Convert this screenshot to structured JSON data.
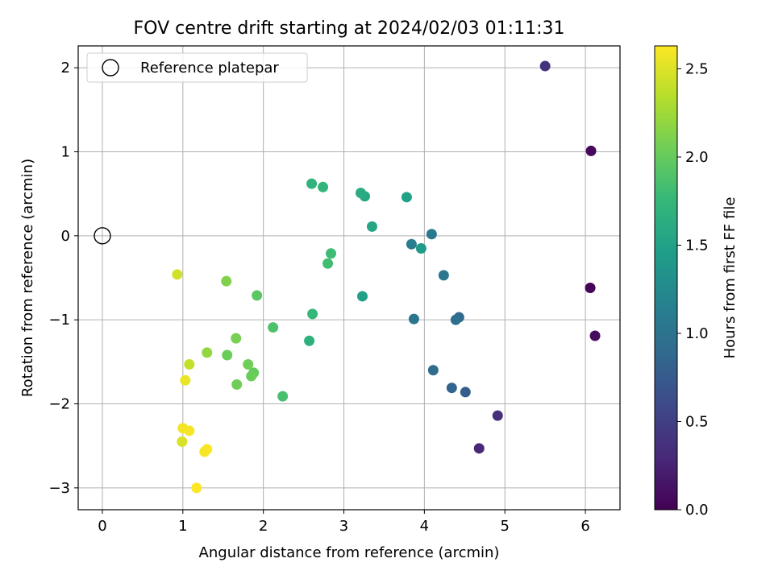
{
  "chart_data": {
    "type": "scatter",
    "title": "FOV centre drift starting at 2024/02/03 01:11:31",
    "xlabel": "Angular distance from reference (arcmin)",
    "ylabel": "Rotation from reference (arcmin)",
    "xlim": [
      -0.3,
      6.43
    ],
    "ylim": [
      -3.26,
      2.26
    ],
    "xticks": [
      0,
      1,
      2,
      3,
      4,
      5,
      6
    ],
    "yticks": [
      -3,
      -2,
      -1,
      0,
      1,
      2
    ],
    "grid": true,
    "legend": {
      "position": "top-left",
      "label": "Reference platepar"
    },
    "reference_point": {
      "x": 0,
      "y": 0
    },
    "colorbar": {
      "label": "Hours from first FF file",
      "range": [
        0.0,
        2.63
      ],
      "ticks": [
        0.0,
        0.5,
        1.0,
        1.5,
        2.0,
        2.5
      ],
      "colormap": "viridis"
    },
    "series": [
      {
        "points": [
          {
            "x": 5.5,
            "y": 2.02,
            "c": 0.4
          },
          {
            "x": 6.07,
            "y": 1.01,
            "c": 0.05
          },
          {
            "x": 6.06,
            "y": -0.62,
            "c": 0.03
          },
          {
            "x": 6.12,
            "y": -1.19,
            "c": 0.08
          },
          {
            "x": 4.91,
            "y": -2.14,
            "c": 0.35
          },
          {
            "x": 4.68,
            "y": -2.53,
            "c": 0.3
          },
          {
            "x": 4.51,
            "y": -1.86,
            "c": 0.78
          },
          {
            "x": 4.34,
            "y": -1.81,
            "c": 0.85
          },
          {
            "x": 4.11,
            "y": -1.6,
            "c": 0.92
          },
          {
            "x": 4.43,
            "y": -0.97,
            "c": 0.88
          },
          {
            "x": 4.39,
            "y": -1.0,
            "c": 0.95
          },
          {
            "x": 4.24,
            "y": -0.47,
            "c": 1.05
          },
          {
            "x": 4.09,
            "y": 0.02,
            "c": 1.08
          },
          {
            "x": 3.84,
            "y": -0.1,
            "c": 1.12
          },
          {
            "x": 3.87,
            "y": -0.99,
            "c": 1.02
          },
          {
            "x": 3.96,
            "y": -0.15,
            "c": 1.42
          },
          {
            "x": 3.78,
            "y": 0.46,
            "c": 1.5
          },
          {
            "x": 3.35,
            "y": 0.11,
            "c": 1.55
          },
          {
            "x": 3.26,
            "y": 0.47,
            "c": 1.58
          },
          {
            "x": 3.21,
            "y": 0.51,
            "c": 1.62
          },
          {
            "x": 3.23,
            "y": -0.72,
            "c": 1.5
          },
          {
            "x": 2.84,
            "y": -0.21,
            "c": 1.8
          },
          {
            "x": 2.8,
            "y": -0.33,
            "c": 1.82
          },
          {
            "x": 2.74,
            "y": 0.58,
            "c": 1.72
          },
          {
            "x": 2.6,
            "y": 0.62,
            "c": 1.7
          },
          {
            "x": 2.61,
            "y": -0.93,
            "c": 1.75
          },
          {
            "x": 2.57,
            "y": -1.25,
            "c": 1.68
          },
          {
            "x": 2.24,
            "y": -1.91,
            "c": 1.85
          },
          {
            "x": 2.12,
            "y": -1.09,
            "c": 1.88
          },
          {
            "x": 1.92,
            "y": -0.71,
            "c": 1.95
          },
          {
            "x": 1.88,
            "y": -1.63,
            "c": 2.0
          },
          {
            "x": 1.85,
            "y": -1.67,
            "c": 2.02
          },
          {
            "x": 1.81,
            "y": -1.53,
            "c": 2.05
          },
          {
            "x": 1.66,
            "y": -1.22,
            "c": 2.08
          },
          {
            "x": 1.67,
            "y": -1.77,
            "c": 2.05
          },
          {
            "x": 1.55,
            "y": -1.42,
            "c": 2.02
          },
          {
            "x": 1.54,
            "y": -0.54,
            "c": 2.12
          },
          {
            "x": 1.3,
            "y": -1.39,
            "c": 2.2
          },
          {
            "x": 1.08,
            "y": -1.53,
            "c": 2.4
          },
          {
            "x": 1.03,
            "y": -1.72,
            "c": 2.55
          },
          {
            "x": 0.93,
            "y": -0.46,
            "c": 2.45
          },
          {
            "x": 1.0,
            "y": -2.29,
            "c": 2.58
          },
          {
            "x": 1.08,
            "y": -2.32,
            "c": 2.6
          },
          {
            "x": 0.99,
            "y": -2.45,
            "c": 2.48
          },
          {
            "x": 1.3,
            "y": -2.54,
            "c": 2.62
          },
          {
            "x": 1.27,
            "y": -2.57,
            "c": 2.6
          },
          {
            "x": 1.17,
            "y": -3.0,
            "c": 2.63
          }
        ]
      }
    ]
  }
}
